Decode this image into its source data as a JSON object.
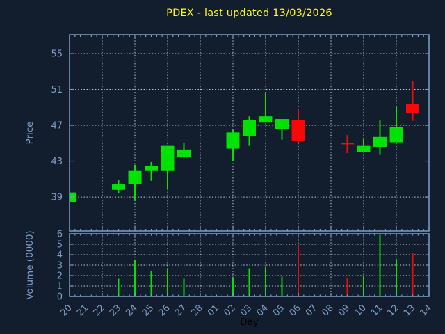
{
  "title": "PDEX - last updated 13/03/2026",
  "colors": {
    "background": "#121e2d",
    "title": "#ffff00",
    "frame": "#7d9ec9",
    "tick_label": "#7d9fc8",
    "grid": "#c3ccd4",
    "up": "#00e300",
    "down": "#fa0707",
    "xlabel_color": "#000000"
  },
  "chart_data": {
    "type": "candlestick+volume",
    "title": "PDEX - last updated 13/03/2026",
    "xlabel": "Day",
    "x_categories": [
      "20",
      "21",
      "22",
      "23",
      "24",
      "25",
      "26",
      "27",
      "28",
      "01",
      "02",
      "03",
      "04",
      "05",
      "06",
      "07",
      "08",
      "09",
      "10",
      "11",
      "12",
      "13",
      "14"
    ],
    "price_axis": {
      "label": "Price",
      "ticks": [
        39,
        43,
        47,
        51,
        55
      ],
      "range": [
        35.2,
        57.1
      ],
      "grid": true
    },
    "volume_axis": {
      "label": "Volume (0000)",
      "ticks": [
        0,
        1,
        2,
        3,
        4,
        5,
        6
      ],
      "range": [
        0,
        6
      ],
      "grid": true
    },
    "grid_x_categories": [
      "22",
      "24",
      "26",
      "28",
      "02",
      "04",
      "06",
      "08",
      "10",
      "12"
    ],
    "legend": "none",
    "candles": [
      {
        "day": "20",
        "x_index": 0,
        "open": 38.4,
        "high": 39.5,
        "low": 38.4,
        "close": 39.5,
        "direction": "up",
        "volume": 0
      },
      {
        "day": "23",
        "x_index": 3,
        "open": 39.8,
        "high": 40.9,
        "low": 39.4,
        "close": 40.4,
        "direction": "up",
        "volume": 1.7
      },
      {
        "day": "24",
        "x_index": 4,
        "open": 40.4,
        "high": 42.6,
        "low": 38.6,
        "close": 41.9,
        "direction": "up",
        "volume": 3.5
      },
      {
        "day": "25",
        "x_index": 5,
        "open": 41.9,
        "high": 42.9,
        "low": 40.8,
        "close": 42.5,
        "direction": "up",
        "volume": 2.4
      },
      {
        "day": "26",
        "x_index": 6,
        "open": 41.9,
        "high": 44.7,
        "low": 39.9,
        "close": 44.7,
        "direction": "up",
        "volume": 2.7
      },
      {
        "day": "27",
        "x_index": 7,
        "open": 43.5,
        "high": 45.0,
        "low": 43.5,
        "close": 44.3,
        "direction": "up",
        "volume": 1.7
      },
      {
        "day": "02",
        "x_index": 10,
        "open": 44.4,
        "high": 46.5,
        "low": 43.0,
        "close": 46.2,
        "direction": "up",
        "volume": 1.8
      },
      {
        "day": "03",
        "x_index": 11,
        "open": 45.8,
        "high": 48.0,
        "low": 44.7,
        "close": 47.6,
        "direction": "up",
        "volume": 2.7
      },
      {
        "day": "04",
        "x_index": 12,
        "open": 47.3,
        "high": 50.6,
        "low": 47.3,
        "close": 48.0,
        "direction": "up",
        "volume": 2.8
      },
      {
        "day": "05",
        "x_index": 13,
        "open": 46.6,
        "high": 47.7,
        "low": 45.4,
        "close": 47.7,
        "direction": "up",
        "volume": 1.9
      },
      {
        "day": "06",
        "x_index": 14,
        "open": 47.6,
        "high": 48.8,
        "low": 45.0,
        "close": 45.3,
        "direction": "down",
        "volume": 4.8
      },
      {
        "day": "09",
        "x_index": 17,
        "open": 45.0,
        "high": 45.9,
        "low": 43.9,
        "close": 44.9,
        "direction": "down",
        "volume": 1.8
      },
      {
        "day": "10",
        "x_index": 18,
        "open": 44.0,
        "high": 45.5,
        "low": 44.0,
        "close": 44.7,
        "direction": "up",
        "volume": 2.0
      },
      {
        "day": "11",
        "x_index": 19,
        "open": 44.6,
        "high": 47.6,
        "low": 43.7,
        "close": 45.7,
        "direction": "up",
        "volume": 5.9
      },
      {
        "day": "12",
        "x_index": 20,
        "open": 45.1,
        "high": 49.1,
        "low": 45.1,
        "close": 46.8,
        "direction": "up",
        "volume": 3.6
      },
      {
        "day": "13",
        "x_index": 21,
        "open": 49.4,
        "high": 51.9,
        "low": 47.5,
        "close": 48.4,
        "direction": "down",
        "volume": 4.2
      }
    ]
  }
}
